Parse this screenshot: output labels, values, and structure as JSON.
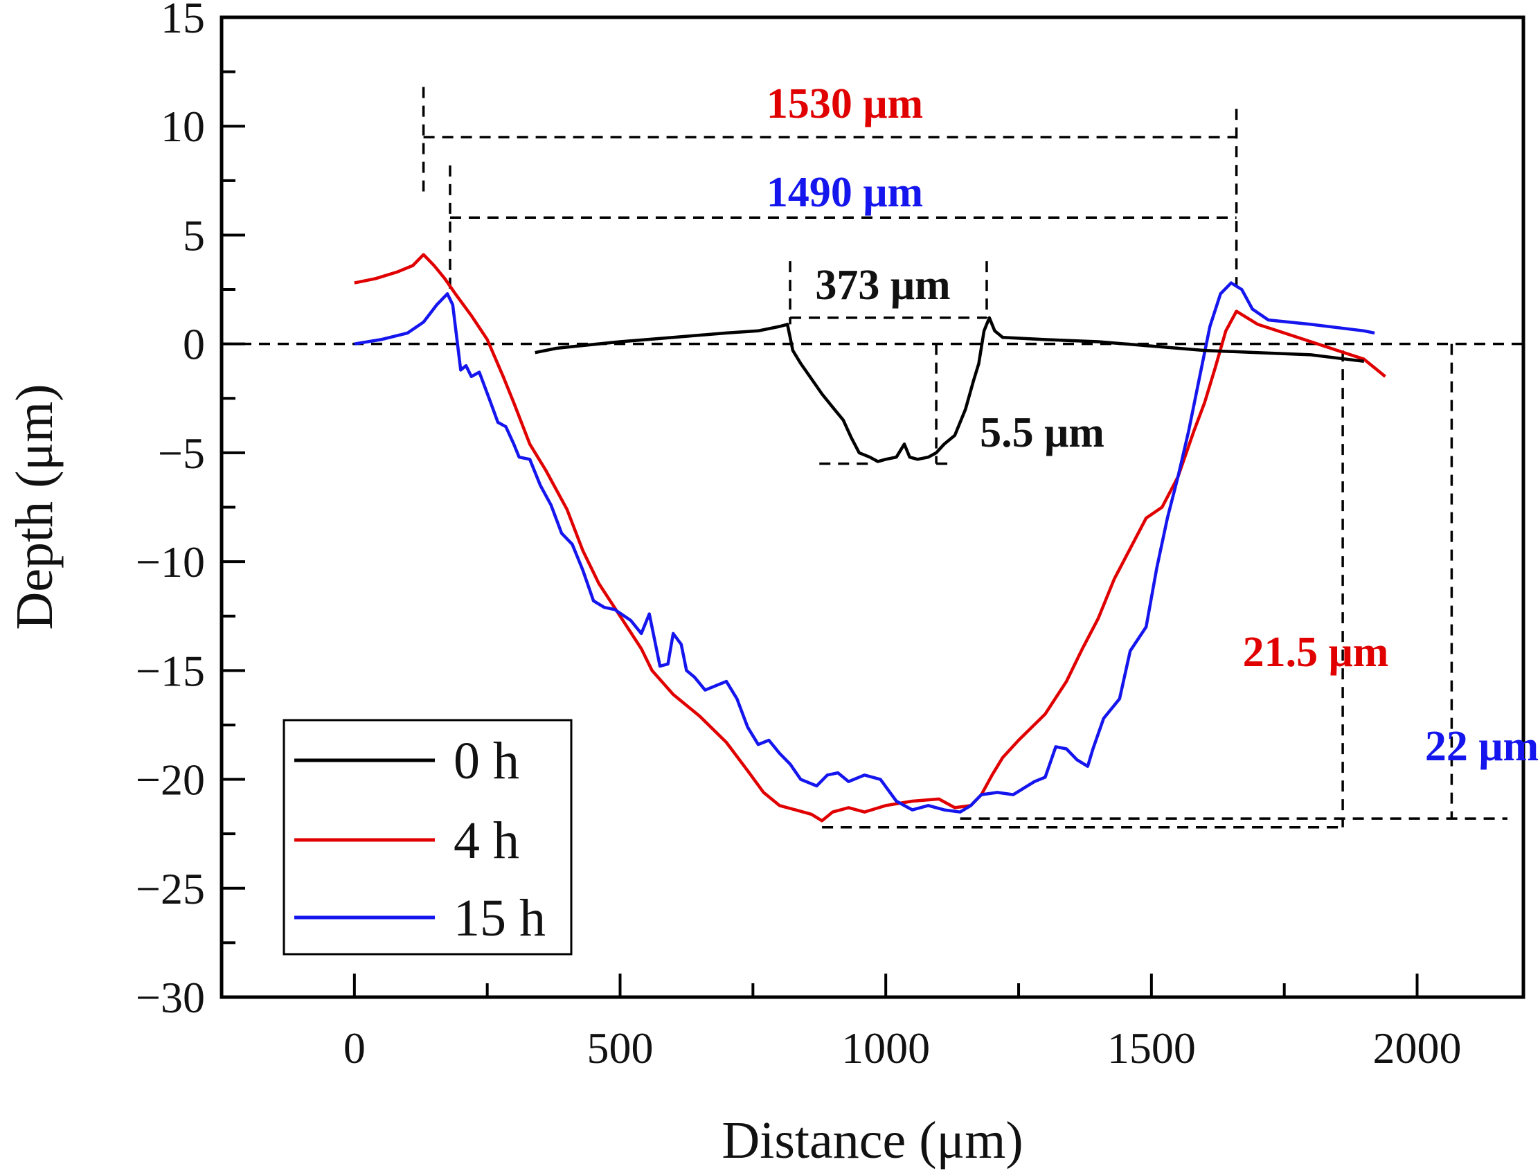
{
  "chart_data": {
    "type": "line",
    "xlabel": "Distance (μm)",
    "ylabel": "Depth (μm)",
    "xlim": [
      -250,
      2200
    ],
    "ylim": [
      -30,
      15
    ],
    "xticks": [
      0,
      500,
      1000,
      1500,
      2000
    ],
    "yticks": [
      15,
      10,
      5,
      0,
      -5,
      -10,
      -15,
      -20,
      -25,
      -30
    ],
    "xtick_labels": [
      "0",
      "500",
      "1000",
      "1500",
      "2000"
    ],
    "ytick_labels": [
      "15",
      "10",
      "5",
      "0",
      "−5",
      "−10",
      "−15",
      "−20",
      "−25",
      "−30"
    ],
    "legend_position": "bottom-left",
    "series": [
      {
        "name": "0 h",
        "color": "#000000",
        "points": [
          [
            340,
            -0.4
          ],
          [
            380,
            -0.2
          ],
          [
            420,
            -0.1
          ],
          [
            500,
            0.1
          ],
          [
            600,
            0.3
          ],
          [
            700,
            0.5
          ],
          [
            760,
            0.6
          ],
          [
            800,
            0.8
          ],
          [
            815,
            0.9
          ],
          [
            825,
            -0.3
          ],
          [
            840,
            -0.9
          ],
          [
            860,
            -1.6
          ],
          [
            880,
            -2.3
          ],
          [
            900,
            -2.9
          ],
          [
            920,
            -3.5
          ],
          [
            935,
            -4.3
          ],
          [
            950,
            -5.0
          ],
          [
            970,
            -5.2
          ],
          [
            985,
            -5.4
          ],
          [
            1000,
            -5.3
          ],
          [
            1020,
            -5.2
          ],
          [
            1035,
            -4.6
          ],
          [
            1045,
            -5.2
          ],
          [
            1060,
            -5.3
          ],
          [
            1080,
            -5.2
          ],
          [
            1095,
            -5.0
          ],
          [
            1110,
            -4.6
          ],
          [
            1130,
            -4.2
          ],
          [
            1150,
            -3.0
          ],
          [
            1165,
            -1.7
          ],
          [
            1175,
            -0.9
          ],
          [
            1185,
            0.6
          ],
          [
            1195,
            1.2
          ],
          [
            1205,
            0.6
          ],
          [
            1220,
            0.3
          ],
          [
            1300,
            0.2
          ],
          [
            1400,
            0.1
          ],
          [
            1500,
            -0.1
          ],
          [
            1600,
            -0.3
          ],
          [
            1700,
            -0.4
          ],
          [
            1800,
            -0.5
          ],
          [
            1900,
            -0.8
          ]
        ]
      },
      {
        "name": "4 h",
        "color": "#e00000",
        "points": [
          [
            0,
            2.8
          ],
          [
            40,
            3.0
          ],
          [
            80,
            3.3
          ],
          [
            110,
            3.6
          ],
          [
            130,
            4.1
          ],
          [
            150,
            3.6
          ],
          [
            170,
            3.0
          ],
          [
            190,
            2.3
          ],
          [
            220,
            1.3
          ],
          [
            250,
            0.2
          ],
          [
            280,
            -1.5
          ],
          [
            300,
            -2.7
          ],
          [
            330,
            -4.6
          ],
          [
            360,
            -5.8
          ],
          [
            400,
            -7.6
          ],
          [
            430,
            -9.5
          ],
          [
            460,
            -11.0
          ],
          [
            500,
            -12.5
          ],
          [
            540,
            -14.0
          ],
          [
            560,
            -15.0
          ],
          [
            600,
            -16.1
          ],
          [
            650,
            -17.1
          ],
          [
            700,
            -18.3
          ],
          [
            740,
            -19.6
          ],
          [
            770,
            -20.6
          ],
          [
            800,
            -21.2
          ],
          [
            830,
            -21.4
          ],
          [
            860,
            -21.6
          ],
          [
            880,
            -21.9
          ],
          [
            900,
            -21.5
          ],
          [
            930,
            -21.3
          ],
          [
            960,
            -21.5
          ],
          [
            1000,
            -21.2
          ],
          [
            1050,
            -21.0
          ],
          [
            1100,
            -20.9
          ],
          [
            1130,
            -21.3
          ],
          [
            1160,
            -21.2
          ],
          [
            1180,
            -20.7
          ],
          [
            1200,
            -19.8
          ],
          [
            1220,
            -19.0
          ],
          [
            1250,
            -18.2
          ],
          [
            1300,
            -17.0
          ],
          [
            1340,
            -15.5
          ],
          [
            1370,
            -14.0
          ],
          [
            1400,
            -12.6
          ],
          [
            1430,
            -10.8
          ],
          [
            1460,
            -9.4
          ],
          [
            1490,
            -8.0
          ],
          [
            1520,
            -7.5
          ],
          [
            1550,
            -6.1
          ],
          [
            1580,
            -4.0
          ],
          [
            1600,
            -2.7
          ],
          [
            1620,
            -1.1
          ],
          [
            1640,
            0.6
          ],
          [
            1660,
            1.5
          ],
          [
            1680,
            1.2
          ],
          [
            1700,
            0.9
          ],
          [
            1750,
            0.5
          ],
          [
            1800,
            0.1
          ],
          [
            1850,
            -0.3
          ],
          [
            1900,
            -0.7
          ],
          [
            1940,
            -1.5
          ]
        ]
      },
      {
        "name": "15 h",
        "color": "#1515ee",
        "points": [
          [
            0,
            0.0
          ],
          [
            50,
            0.2
          ],
          [
            100,
            0.5
          ],
          [
            130,
            1.0
          ],
          [
            155,
            1.8
          ],
          [
            175,
            2.3
          ],
          [
            185,
            1.8
          ],
          [
            200,
            -1.2
          ],
          [
            210,
            -1.0
          ],
          [
            220,
            -1.5
          ],
          [
            235,
            -1.3
          ],
          [
            255,
            -2.6
          ],
          [
            270,
            -3.6
          ],
          [
            285,
            -3.8
          ],
          [
            300,
            -4.6
          ],
          [
            310,
            -5.2
          ],
          [
            330,
            -5.3
          ],
          [
            350,
            -6.5
          ],
          [
            370,
            -7.4
          ],
          [
            390,
            -8.7
          ],
          [
            410,
            -9.2
          ],
          [
            430,
            -10.4
          ],
          [
            450,
            -11.8
          ],
          [
            470,
            -12.1
          ],
          [
            490,
            -12.2
          ],
          [
            520,
            -12.7
          ],
          [
            540,
            -13.3
          ],
          [
            555,
            -12.4
          ],
          [
            565,
            -13.6
          ],
          [
            575,
            -14.8
          ],
          [
            590,
            -14.7
          ],
          [
            600,
            -13.3
          ],
          [
            615,
            -13.8
          ],
          [
            625,
            -15.0
          ],
          [
            640,
            -15.3
          ],
          [
            660,
            -15.9
          ],
          [
            680,
            -15.7
          ],
          [
            700,
            -15.5
          ],
          [
            720,
            -16.3
          ],
          [
            740,
            -17.6
          ],
          [
            760,
            -18.4
          ],
          [
            780,
            -18.2
          ],
          [
            800,
            -18.8
          ],
          [
            820,
            -19.3
          ],
          [
            840,
            -20.0
          ],
          [
            870,
            -20.3
          ],
          [
            890,
            -19.8
          ],
          [
            910,
            -19.7
          ],
          [
            930,
            -20.1
          ],
          [
            960,
            -19.8
          ],
          [
            990,
            -20.0
          ],
          [
            1020,
            -21.0
          ],
          [
            1050,
            -21.4
          ],
          [
            1080,
            -21.2
          ],
          [
            1110,
            -21.4
          ],
          [
            1140,
            -21.5
          ],
          [
            1160,
            -21.2
          ],
          [
            1180,
            -20.7
          ],
          [
            1210,
            -20.6
          ],
          [
            1240,
            -20.7
          ],
          [
            1260,
            -20.4
          ],
          [
            1280,
            -20.1
          ],
          [
            1300,
            -19.9
          ],
          [
            1310,
            -19.2
          ],
          [
            1320,
            -18.5
          ],
          [
            1340,
            -18.6
          ],
          [
            1360,
            -19.1
          ],
          [
            1380,
            -19.4
          ],
          [
            1390,
            -18.6
          ],
          [
            1410,
            -17.2
          ],
          [
            1440,
            -16.3
          ],
          [
            1460,
            -14.1
          ],
          [
            1490,
            -13.0
          ],
          [
            1510,
            -10.3
          ],
          [
            1530,
            -8.0
          ],
          [
            1550,
            -6.1
          ],
          [
            1570,
            -4.0
          ],
          [
            1590,
            -1.6
          ],
          [
            1610,
            0.8
          ],
          [
            1630,
            2.3
          ],
          [
            1650,
            2.8
          ],
          [
            1670,
            2.5
          ],
          [
            1690,
            1.6
          ],
          [
            1720,
            1.1
          ],
          [
            1800,
            0.9
          ],
          [
            1900,
            0.6
          ],
          [
            1920,
            0.5
          ]
        ]
      }
    ],
    "annotations": [
      {
        "text": "1530 μm",
        "color": "#e00000"
      },
      {
        "text": "1490 μm",
        "color": "#1515ee"
      },
      {
        "text": "373 μm",
        "color": "#111111"
      },
      {
        "text": "5.5 μm",
        "color": "#111111"
      },
      {
        "text": "21.5 μm",
        "color": "#e00000"
      },
      {
        "text": "22 μm",
        "color": "#1515ee"
      }
    ]
  }
}
